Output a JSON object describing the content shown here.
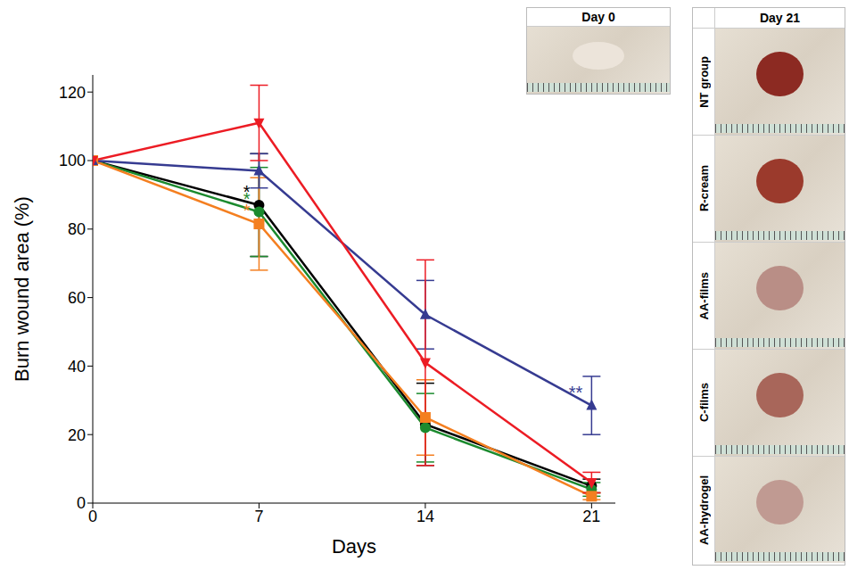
{
  "chart_data": {
    "type": "line",
    "x": [
      0,
      7,
      14,
      21
    ],
    "xlim": [
      0,
      22
    ],
    "xticks": [
      0,
      7,
      14,
      21
    ],
    "ylim": [
      0,
      125
    ],
    "yticks": [
      0,
      20,
      40,
      60,
      80,
      100,
      120
    ],
    "x_label": "Days",
    "y_label": "Burn wound area (%)",
    "series": [
      {
        "color": "#000000",
        "marker": "circle",
        "values": [
          100,
          87,
          23,
          5
        ],
        "error": [
          0,
          15,
          12,
          2
        ],
        "significance": [
          null,
          "*",
          null,
          null
        ]
      },
      {
        "color": "#1b8a2e",
        "marker": "circle",
        "values": [
          100,
          85,
          22,
          4
        ],
        "error": [
          0,
          13,
          10,
          2
        ],
        "significance": [
          null,
          "*",
          null,
          null
        ]
      },
      {
        "color": "#f47f20",
        "marker": "square",
        "values": [
          100,
          81.5,
          25,
          2
        ],
        "error": [
          0,
          13.5,
          11,
          1
        ],
        "significance": [
          null,
          "*",
          null,
          null
        ]
      },
      {
        "color": "#363b91",
        "marker": "triangle-up",
        "values": [
          100,
          97,
          55,
          28.5
        ],
        "error": [
          0,
          5,
          10,
          8.5
        ],
        "significance": [
          null,
          null,
          null,
          "**"
        ]
      },
      {
        "color": "#ec1c24",
        "marker": "triangle-down",
        "values": [
          100,
          111,
          41,
          6
        ],
        "error": [
          0,
          11,
          30,
          3
        ],
        "significance": [
          null,
          null,
          null,
          null
        ]
      }
    ]
  },
  "images": {
    "day0": {
      "title": "Day 0"
    },
    "day21": {
      "title": "Day 21",
      "rows": [
        "NT group",
        "R-cream",
        "AA-films",
        "C-films",
        "AA-hydrogel"
      ]
    }
  }
}
